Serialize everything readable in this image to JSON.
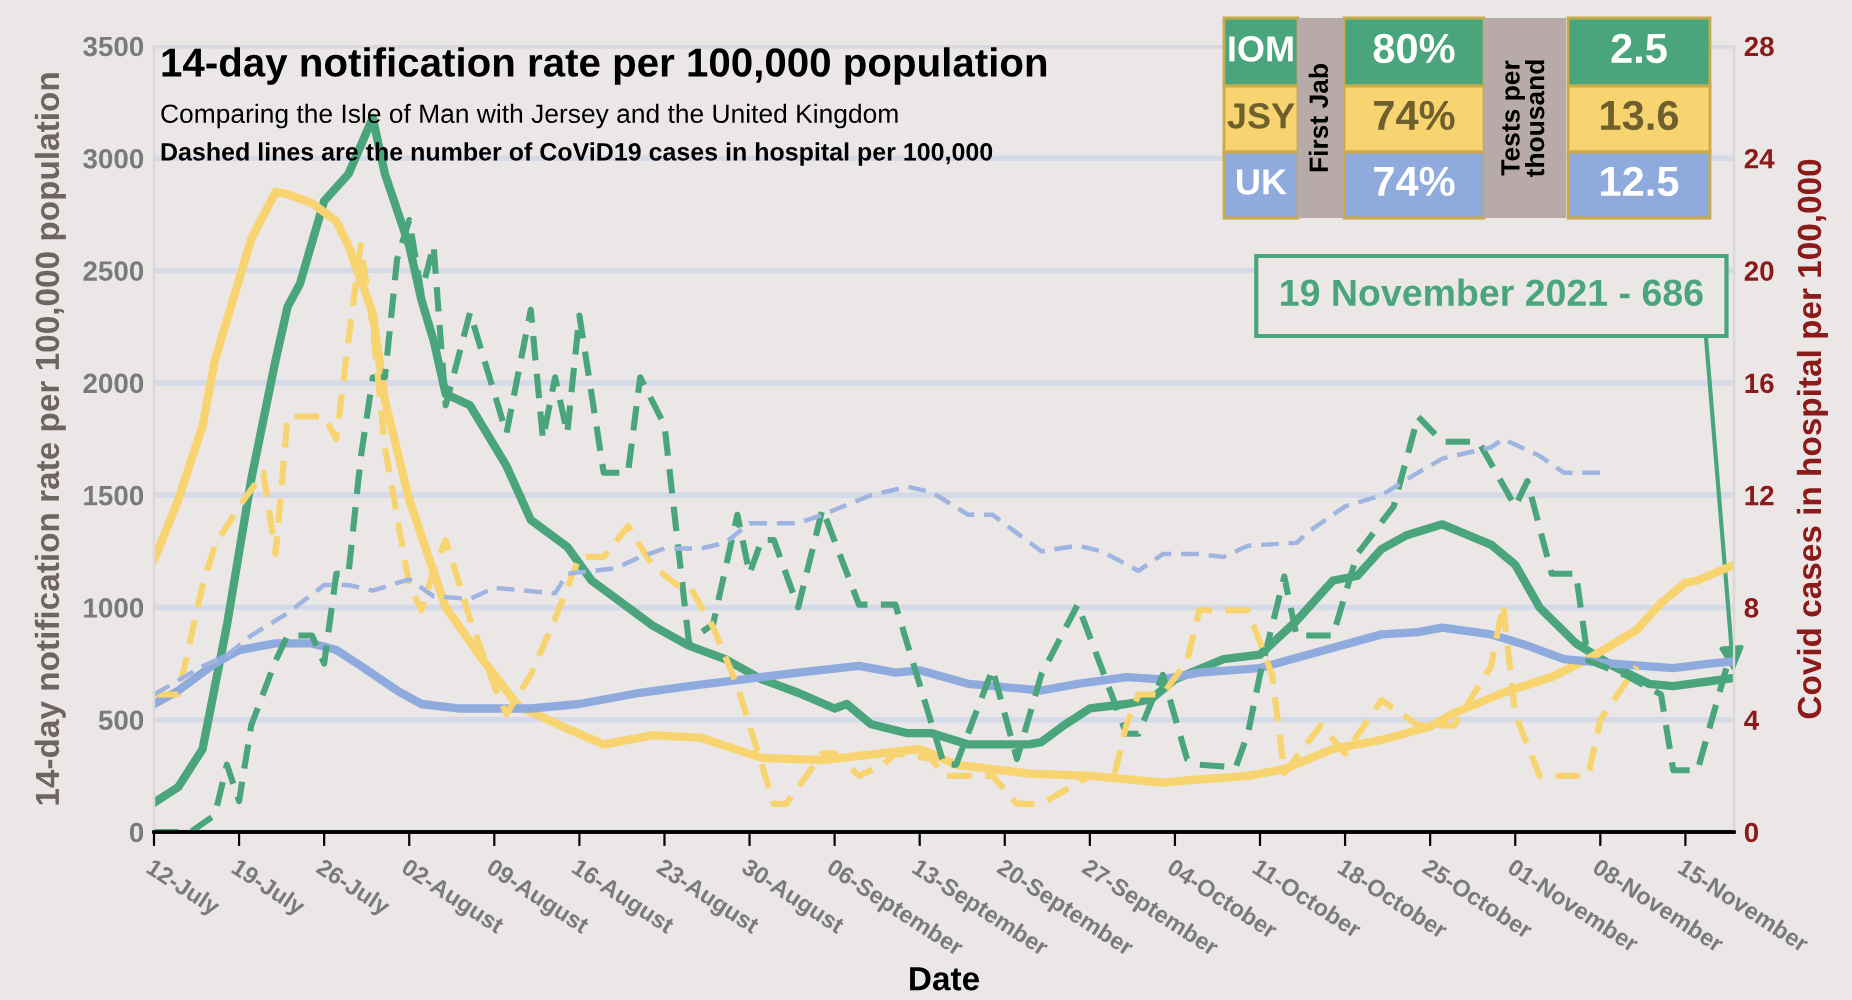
{
  "chart_data": {
    "type": "line",
    "title": "14-day notification rate per 100,000 population",
    "subtitle": "Comparing the Isle of Man with Jersey and the United Kingdom",
    "xlabel": "Date",
    "ylabel": "14-day notification rate per 100,000 population",
    "y2label": "Covid cases in hospital per 100,000",
    "annotations": [
      "Dashed lines are the number of CoViD19 cases in hospital per 100,000",
      "First Jab",
      "Tests per thousand",
      "80%",
      "74%",
      "74%",
      "2.5",
      "13.6",
      "12.5",
      {
        "text": "19 November 2021 - 686",
        "x": "2021-11-19",
        "y": 686
      }
    ],
    "xlim": [
      "2021-07-12",
      "2021-11-19"
    ],
    "xticks": [
      {
        "value": "2021-07-12",
        "label": "12-July"
      },
      {
        "value": "2021-07-19",
        "label": "19-July"
      },
      {
        "value": "2021-07-26",
        "label": "26-July"
      },
      {
        "value": "2021-08-02",
        "label": "02-August"
      },
      {
        "value": "2021-08-09",
        "label": "09-August"
      },
      {
        "value": "2021-08-16",
        "label": "16-August"
      },
      {
        "value": "2021-08-23",
        "label": "23-August"
      },
      {
        "value": "2021-08-30",
        "label": "30-August"
      },
      {
        "value": "2021-09-06",
        "label": "06-September"
      },
      {
        "value": "2021-09-13",
        "label": "13-September"
      },
      {
        "value": "2021-09-20",
        "label": "20-September"
      },
      {
        "value": "2021-09-27",
        "label": "27-September"
      },
      {
        "value": "2021-10-04",
        "label": "04-October"
      },
      {
        "value": "2021-10-11",
        "label": "11-October"
      },
      {
        "value": "2021-10-18",
        "label": "18-October"
      },
      {
        "value": "2021-10-25",
        "label": "25-October"
      },
      {
        "value": "2021-11-01",
        "label": "01-November"
      },
      {
        "value": "2021-11-08",
        "label": "08-November"
      },
      {
        "value": "2021-11-15",
        "label": "15-November"
      }
    ],
    "ylim": [
      0,
      3500
    ],
    "yticks": [
      0,
      500,
      1000,
      1500,
      2000,
      2500,
      3000,
      3500
    ],
    "y2lim": [
      0,
      28
    ],
    "y2ticks": [
      0,
      4,
      8,
      12,
      16,
      20,
      24,
      28
    ],
    "grid": "y",
    "marker": "none",
    "legend": "top right",
    "series": [
      {
        "name": "IOM",
        "color": "#4aa57c",
        "line_style": "solid",
        "x": [
          "2021-07-12",
          "2021-07-14",
          "2021-07-16",
          "2021-07-18",
          "2021-07-20",
          "2021-07-22",
          "2021-07-23",
          "2021-07-24",
          "2021-07-26",
          "2021-07-28",
          "2021-07-30",
          "2021-07-31",
          "2021-08-02",
          "2021-08-03",
          "2021-08-04",
          "2021-08-05",
          "2021-08-07",
          "2021-08-10",
          "2021-08-12",
          "2021-08-15",
          "2021-08-17",
          "2021-08-20",
          "2021-08-22",
          "2021-08-25",
          "2021-08-28",
          "2021-08-31",
          "2021-09-03",
          "2021-09-06",
          "2021-09-07",
          "2021-09-09",
          "2021-09-12",
          "2021-09-14",
          "2021-09-17",
          "2021-09-22",
          "2021-09-23",
          "2021-09-25",
          "2021-09-27",
          "2021-09-30",
          "2021-10-02",
          "2021-10-04",
          "2021-10-08",
          "2021-10-11",
          "2021-10-14",
          "2021-10-17",
          "2021-10-19",
          "2021-10-21",
          "2021-10-23",
          "2021-10-26",
          "2021-10-30",
          "2021-11-01",
          "2021-11-03",
          "2021-11-06",
          "2021-11-09",
          "2021-11-12",
          "2021-11-14",
          "2021-11-19"
        ],
        "values": [
          130,
          200,
          370,
          920,
          1570,
          2100,
          2340,
          2440,
          2810,
          2930,
          3180,
          2930,
          2610,
          2370,
          2190,
          1950,
          1900,
          1630,
          1390,
          1270,
          1120,
          1000,
          920,
          830,
          770,
          680,
          620,
          550,
          570,
          480,
          440,
          440,
          390,
          390,
          400,
          480,
          550,
          570,
          590,
          680,
          770,
          790,
          940,
          1120,
          1140,
          1260,
          1320,
          1370,
          1280,
          1190,
          1000,
          840,
          740,
          660,
          650,
          686
        ]
      },
      {
        "name": "JSY",
        "color": "#f7d470",
        "line_style": "solid",
        "x": [
          "2021-07-12",
          "2021-07-14",
          "2021-07-16",
          "2021-07-17",
          "2021-07-20",
          "2021-07-22",
          "2021-07-23",
          "2021-07-25",
          "2021-07-27",
          "2021-07-28",
          "2021-07-30",
          "2021-07-31",
          "2021-08-02",
          "2021-08-05",
          "2021-08-08",
          "2021-08-11",
          "2021-08-15",
          "2021-08-18",
          "2021-08-20",
          "2021-08-22",
          "2021-08-26",
          "2021-08-31",
          "2021-09-05",
          "2021-09-13",
          "2021-09-16",
          "2021-09-22",
          "2021-09-27",
          "2021-10-03",
          "2021-10-05",
          "2021-10-10",
          "2021-10-13",
          "2021-10-17",
          "2021-10-21",
          "2021-10-25",
          "2021-10-27",
          "2021-10-31",
          "2021-11-04",
          "2021-11-07",
          "2021-11-11",
          "2021-11-13",
          "2021-11-15",
          "2021-11-16",
          "2021-11-19"
        ],
        "values": [
          1210,
          1480,
          1810,
          2100,
          2640,
          2850,
          2840,
          2800,
          2720,
          2610,
          2310,
          1920,
          1480,
          1000,
          770,
          560,
          460,
          390,
          410,
          430,
          420,
          330,
          320,
          370,
          300,
          260,
          250,
          220,
          230,
          250,
          280,
          370,
          410,
          470,
          530,
          620,
          690,
          770,
          900,
          1020,
          1110,
          1120,
          1190
        ]
      },
      {
        "name": "UK",
        "color": "#8faadc",
        "line_style": "solid",
        "x": [
          "2021-07-12",
          "2021-07-14",
          "2021-07-17",
          "2021-07-19",
          "2021-07-22",
          "2021-07-25",
          "2021-07-27",
          "2021-07-29",
          "2021-08-01",
          "2021-08-03",
          "2021-08-06",
          "2021-08-12",
          "2021-08-16",
          "2021-08-21",
          "2021-08-25",
          "2021-08-28",
          "2021-09-03",
          "2021-09-08",
          "2021-09-11",
          "2021-09-13",
          "2021-09-17",
          "2021-09-23",
          "2021-09-26",
          "2021-09-30",
          "2021-10-03",
          "2021-10-06",
          "2021-10-11",
          "2021-10-15",
          "2021-10-21",
          "2021-10-24",
          "2021-10-26",
          "2021-10-30",
          "2021-11-02",
          "2021-11-05",
          "2021-11-09",
          "2021-11-14",
          "2021-11-17",
          "2021-11-19"
        ],
        "values": [
          570,
          630,
          750,
          810,
          840,
          840,
          810,
          740,
          630,
          570,
          550,
          550,
          570,
          620,
          650,
          670,
          710,
          740,
          710,
          720,
          660,
          630,
          660,
          690,
          680,
          710,
          730,
          790,
          880,
          890,
          910,
          880,
          830,
          770,
          750,
          730,
          750,
          760
        ]
      },
      {
        "color": "#4aa57c",
        "line_style": "dashed",
        "axis": "y2",
        "x": [
          "2021-07-12",
          "2021-07-15",
          "2021-07-17",
          "2021-07-18",
          "2021-07-19",
          "2021-07-20",
          "2021-07-22",
          "2021-07-23",
          "2021-07-25",
          "2021-07-26",
          "2021-07-27",
          "2021-07-28",
          "2021-07-29",
          "2021-07-30",
          "2021-07-31",
          "2021-08-01",
          "2021-08-02",
          "2021-08-03",
          "2021-08-04",
          "2021-08-05",
          "2021-08-07",
          "2021-08-10",
          "2021-08-12",
          "2021-08-13",
          "2021-08-14",
          "2021-08-15",
          "2021-08-16",
          "2021-08-18",
          "2021-08-20",
          "2021-08-21",
          "2021-08-23",
          "2021-08-25",
          "2021-08-27",
          "2021-08-29",
          "2021-08-30",
          "2021-08-31",
          "2021-09-01",
          "2021-09-03",
          "2021-09-05",
          "2021-09-08",
          "2021-09-11",
          "2021-09-15",
          "2021-09-16",
          "2021-09-19",
          "2021-09-21",
          "2021-09-23",
          "2021-09-26",
          "2021-09-28",
          "2021-09-30",
          "2021-10-01",
          "2021-10-03",
          "2021-10-05",
          "2021-10-06",
          "2021-10-09",
          "2021-10-10",
          "2021-10-11",
          "2021-10-13",
          "2021-10-14",
          "2021-10-17",
          "2021-10-19",
          "2021-10-22",
          "2021-10-24",
          "2021-10-26",
          "2021-10-29",
          "2021-11-01",
          "2021-11-02",
          "2021-11-04",
          "2021-11-06",
          "2021-11-07",
          "2021-11-10",
          "2021-11-13",
          "2021-11-14",
          "2021-11-16",
          "2021-11-19"
        ],
        "values": [
          0,
          0,
          0.6,
          2.4,
          1.1,
          3.8,
          6.1,
          7.0,
          7.0,
          6.0,
          9.2,
          9.2,
          13.3,
          16.2,
          16.2,
          20.4,
          21.8,
          19.2,
          20.9,
          15.2,
          18.5,
          14.2,
          18.6,
          14.0,
          16.2,
          14.2,
          18.4,
          12.8,
          12.8,
          16.2,
          14.5,
          6.8,
          7.4,
          11.3,
          9.2,
          10.4,
          10.4,
          8.0,
          11.5,
          8.1,
          8.1,
          2.4,
          2.4,
          5.8,
          2.6,
          5.6,
          8.1,
          5.8,
          3.5,
          3.5,
          5.6,
          2.6,
          2.4,
          2.3,
          3.5,
          5.6,
          9.1,
          7.0,
          7.0,
          9.9,
          11.6,
          14.8,
          13.9,
          13.9,
          11.6,
          12.5,
          9.2,
          9.2,
          6.1,
          5.6,
          4.9,
          2.2,
          2.2,
          6.8
        ]
      },
      {
        "color": "#f7d470",
        "line_style": "dashed",
        "axis": "y2",
        "x": [
          "2021-07-12",
          "2021-07-14",
          "2021-07-16",
          "2021-07-17",
          "2021-07-19",
          "2021-07-21",
          "2021-07-22",
          "2021-07-23",
          "2021-07-26",
          "2021-07-27",
          "2021-07-28",
          "2021-07-29",
          "2021-07-30",
          "2021-07-31",
          "2021-08-02",
          "2021-08-03",
          "2021-08-04",
          "2021-08-05",
          "2021-08-07",
          "2021-08-09",
          "2021-08-10",
          "2021-08-12",
          "2021-08-14",
          "2021-08-16",
          "2021-08-18",
          "2021-08-20",
          "2021-08-22",
          "2021-08-24",
          "2021-08-25",
          "2021-08-27",
          "2021-08-29",
          "2021-08-31",
          "2021-09-01",
          "2021-09-02",
          "2021-09-05",
          "2021-09-06",
          "2021-09-08",
          "2021-09-10",
          "2021-09-11",
          "2021-09-14",
          "2021-09-15",
          "2021-09-19",
          "2021-09-21",
          "2021-09-23",
          "2021-09-27",
          "2021-09-29",
          "2021-09-30",
          "2021-10-01",
          "2021-10-03",
          "2021-10-05",
          "2021-10-06",
          "2021-10-10",
          "2021-10-12",
          "2021-10-13",
          "2021-10-16",
          "2021-10-18",
          "2021-10-21",
          "2021-10-24",
          "2021-10-27",
          "2021-10-30",
          "2021-10-31",
          "2021-11-01",
          "2021-11-03",
          "2021-11-07",
          "2021-11-08",
          "2021-11-11"
        ],
        "values": [
          4.9,
          4.9,
          8.8,
          10.2,
          11.6,
          12.8,
          9.9,
          14.8,
          14.8,
          14.0,
          17.5,
          20.9,
          18.0,
          13.7,
          8.8,
          7.9,
          9.3,
          10.4,
          7.6,
          5.2,
          4.2,
          5.6,
          7.6,
          9.8,
          9.8,
          10.9,
          9.5,
          8.8,
          8.8,
          7.3,
          5.2,
          2.4,
          1.0,
          1.0,
          2.8,
          2.8,
          2.0,
          2.4,
          2.8,
          2.6,
          2.0,
          2.0,
          1.0,
          1.0,
          2.0,
          2.0,
          3.8,
          4.9,
          4.9,
          6.1,
          7.9,
          7.9,
          5.6,
          2.1,
          3.8,
          2.8,
          4.7,
          3.8,
          3.8,
          5.9,
          8.1,
          4.2,
          2.0,
          2.0,
          4.0,
          5.9
        ]
      },
      {
        "color": "#9fb4e0",
        "line_style": "dashed",
        "axis": "y2",
        "x": [
          "2021-07-12",
          "2021-07-14",
          "2021-07-16",
          "2021-07-18",
          "2021-07-20",
          "2021-07-23",
          "2021-07-26",
          "2021-07-28",
          "2021-07-30",
          "2021-08-02",
          "2021-08-04",
          "2021-08-07",
          "2021-08-09",
          "2021-08-14",
          "2021-08-15",
          "2021-08-19",
          "2021-08-21",
          "2021-08-23",
          "2021-08-26",
          "2021-08-28",
          "2021-08-30",
          "2021-09-03",
          "2021-09-05",
          "2021-09-09",
          "2021-09-12",
          "2021-09-14",
          "2021-09-17",
          "2021-09-19",
          "2021-09-23",
          "2021-09-26",
          "2021-09-28",
          "2021-10-01",
          "2021-10-03",
          "2021-10-06",
          "2021-10-08",
          "2021-10-10",
          "2021-10-14",
          "2021-10-15",
          "2021-10-18",
          "2021-10-21",
          "2021-10-24",
          "2021-10-26",
          "2021-10-30",
          "2021-10-31",
          "2021-11-03",
          "2021-11-05",
          "2021-11-06",
          "2021-11-08"
        ],
        "values": [
          4.9,
          5.4,
          5.9,
          6.3,
          7.0,
          7.8,
          8.8,
          8.8,
          8.6,
          9.0,
          8.4,
          8.3,
          8.7,
          8.5,
          9.2,
          9.4,
          9.8,
          10.1,
          10.1,
          10.3,
          11.0,
          11.0,
          11.3,
          12.0,
          12.3,
          12.1,
          11.3,
          11.3,
          10.0,
          10.2,
          10.0,
          9.3,
          9.9,
          9.9,
          9.8,
          10.2,
          10.3,
          10.7,
          11.6,
          12.0,
          12.8,
          13.3,
          13.7,
          14.0,
          13.4,
          12.8,
          12.8,
          12.8
        ]
      }
    ]
  }
}
